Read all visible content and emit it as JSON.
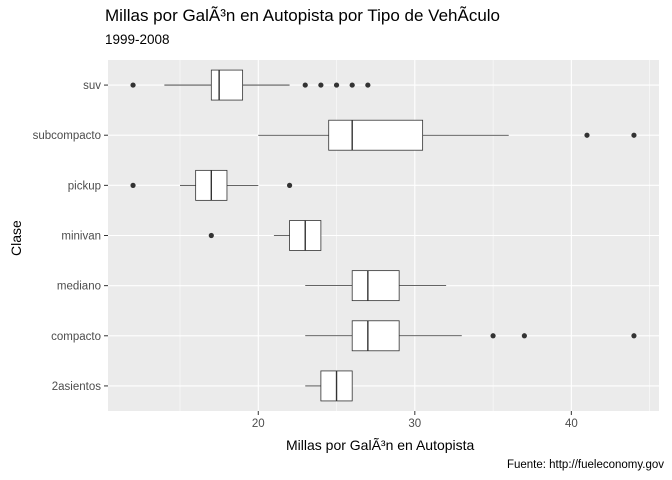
{
  "chart_data": {
    "type": "boxplot",
    "orientation": "horizontal",
    "title": "Millas por GalÃ³n en Autopista por Tipo de VehÃ­culo",
    "subtitle": "1999-2008",
    "xlabel": "Millas por GalÃ³n en Autopista",
    "ylabel": "Clase",
    "caption": "Fuente: http://fueleconomy.gov",
    "xlim": [
      10.4,
      45.6
    ],
    "xticks": [
      20,
      30,
      40
    ],
    "grid": true,
    "categories": [
      "suv",
      "subcompacto",
      "pickup",
      "minivan",
      "mediano",
      "compacto",
      "2asientos"
    ],
    "boxes": [
      {
        "category": "suv",
        "min": 14,
        "q1": 17,
        "median": 17.5,
        "q3": 19,
        "max": 22,
        "outliers": [
          12,
          23,
          24,
          25,
          26,
          27
        ]
      },
      {
        "category": "subcompacto",
        "min": 20,
        "q1": 24.5,
        "median": 26,
        "q3": 30.5,
        "max": 36,
        "outliers": [
          41,
          44
        ]
      },
      {
        "category": "pickup",
        "min": 15,
        "q1": 16,
        "median": 17,
        "q3": 18,
        "max": 20,
        "outliers": [
          12,
          22
        ]
      },
      {
        "category": "minivan",
        "min": 21,
        "q1": 22,
        "median": 23,
        "q3": 24,
        "max": 24,
        "outliers": [
          17
        ]
      },
      {
        "category": "mediano",
        "min": 23,
        "q1": 26,
        "median": 27,
        "q3": 29,
        "max": 32,
        "outliers": []
      },
      {
        "category": "compacto",
        "min": 23,
        "q1": 26,
        "median": 27,
        "q3": 29,
        "max": 33,
        "outliers": [
          35,
          37,
          44
        ]
      },
      {
        "category": "2asientos",
        "min": 23,
        "q1": 24,
        "median": 25,
        "q3": 26,
        "max": 26,
        "outliers": []
      }
    ],
    "colors": {
      "panel_background": "#ebebeb",
      "grid_major": "#ffffff",
      "box_fill": "#ffffff",
      "box_stroke": "#333333",
      "outlier": "#333333",
      "tick_label": "#4d4d4d"
    }
  }
}
